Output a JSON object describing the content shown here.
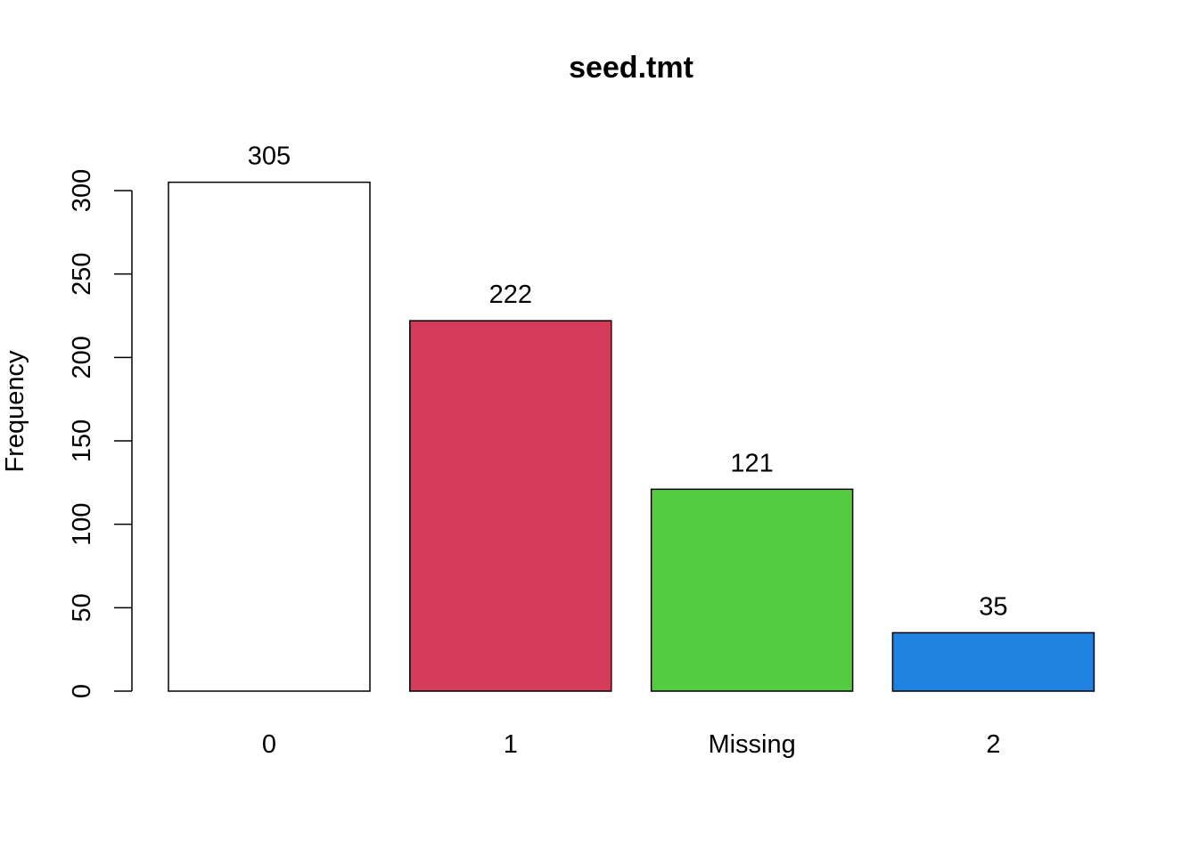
{
  "chart_data": {
    "type": "bar",
    "title": "seed.tmt",
    "xlabel": "",
    "ylabel": "Frequency",
    "categories": [
      "0",
      "1",
      "Missing",
      "2"
    ],
    "values": [
      305,
      222,
      121,
      35
    ],
    "colors": [
      "#ffffff",
      "#d53b5a",
      "#54cb40",
      "#1f82e0"
    ],
    "yticks": [
      0,
      50,
      100,
      150,
      200,
      250,
      300
    ],
    "ylim": [
      0,
      305
    ],
    "grid": false,
    "legend": "none",
    "data_labels": [
      "305",
      "222",
      "121",
      "35"
    ]
  }
}
